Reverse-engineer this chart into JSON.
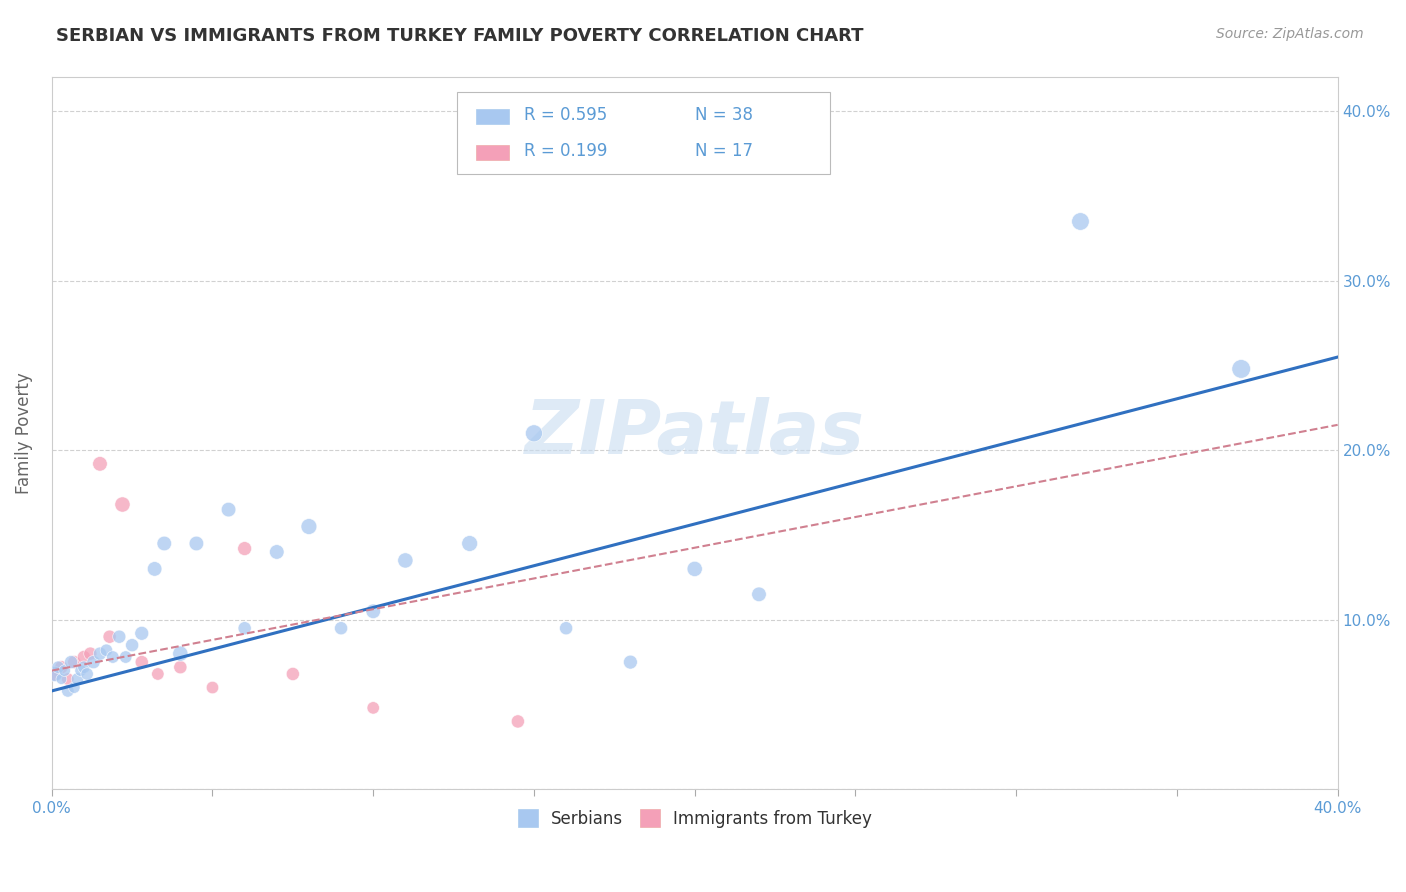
{
  "title": "SERBIAN VS IMMIGRANTS FROM TURKEY FAMILY POVERTY CORRELATION CHART",
  "source": "Source: ZipAtlas.com",
  "ylabel": "Family Poverty",
  "xlim": [
    0.0,
    0.4
  ],
  "ylim": [
    0.0,
    0.42
  ],
  "legend_r1": "R = 0.595",
  "legend_n1": "N = 38",
  "legend_r2": "R = 0.199",
  "legend_n2": "N = 17",
  "serbian_color": "#A8C8F0",
  "turkish_color": "#F4A0B8",
  "serbian_line_color": "#3070C0",
  "turkish_line_color": "#D08090",
  "grid_color": "#CCCCCC",
  "title_color": "#333333",
  "axis_label_color": "#666666",
  "tick_label_color": "#5B9BD5",
  "watermark": "ZIPatlas",
  "background_color": "#FFFFFF",
  "serbian_x": [
    0.001,
    0.002,
    0.003,
    0.004,
    0.005,
    0.006,
    0.007,
    0.008,
    0.009,
    0.01,
    0.011,
    0.013,
    0.015,
    0.017,
    0.019,
    0.021,
    0.023,
    0.025,
    0.028,
    0.032,
    0.035,
    0.04,
    0.045,
    0.055,
    0.06,
    0.07,
    0.08,
    0.09,
    0.1,
    0.11,
    0.13,
    0.15,
    0.16,
    0.18,
    0.2,
    0.22,
    0.32,
    0.37
  ],
  "serbian_y": [
    0.068,
    0.072,
    0.065,
    0.07,
    0.058,
    0.075,
    0.06,
    0.065,
    0.07,
    0.072,
    0.068,
    0.075,
    0.08,
    0.082,
    0.078,
    0.09,
    0.078,
    0.085,
    0.092,
    0.13,
    0.145,
    0.08,
    0.145,
    0.165,
    0.095,
    0.14,
    0.155,
    0.095,
    0.105,
    0.135,
    0.145,
    0.21,
    0.095,
    0.075,
    0.13,
    0.115,
    0.335,
    0.248
  ],
  "serbian_sizes": [
    120,
    80,
    60,
    70,
    80,
    90,
    70,
    80,
    70,
    80,
    80,
    90,
    90,
    80,
    80,
    90,
    80,
    90,
    100,
    110,
    110,
    120,
    110,
    110,
    90,
    110,
    130,
    90,
    110,
    120,
    130,
    150,
    90,
    100,
    120,
    110,
    160,
    180
  ],
  "turkish_x": [
    0.001,
    0.003,
    0.005,
    0.007,
    0.01,
    0.012,
    0.015,
    0.018,
    0.022,
    0.028,
    0.033,
    0.04,
    0.05,
    0.06,
    0.075,
    0.1,
    0.145
  ],
  "turkish_y": [
    0.068,
    0.072,
    0.065,
    0.075,
    0.078,
    0.08,
    0.192,
    0.09,
    0.168,
    0.075,
    0.068,
    0.072,
    0.06,
    0.142,
    0.068,
    0.048,
    0.04
  ],
  "turkish_sizes": [
    100,
    90,
    80,
    90,
    90,
    90,
    110,
    90,
    120,
    90,
    80,
    90,
    80,
    100,
    90,
    80,
    90
  ],
  "serbian_trend_x": [
    0.0,
    0.4
  ],
  "serbian_trend_y": [
    0.058,
    0.255
  ],
  "turkish_trend_x": [
    0.0,
    0.4
  ],
  "turkish_trend_y": [
    0.07,
    0.215
  ]
}
